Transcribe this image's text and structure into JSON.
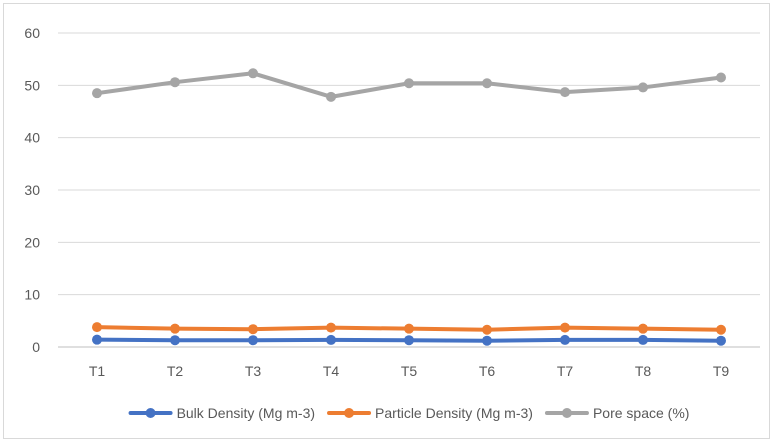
{
  "chart_data": {
    "type": "line",
    "title": "",
    "xlabel": "",
    "ylabel": "",
    "categories": [
      "T1",
      "T2",
      "T3",
      "T4",
      "T5",
      "T6",
      "T7",
      "T8",
      "T9"
    ],
    "ylim": [
      0,
      60
    ],
    "yticks": [
      0,
      10,
      20,
      30,
      40,
      50,
      60
    ],
    "grid": "horizontal",
    "legend": "bottom",
    "series": [
      {
        "name": "Bulk Density (Mg m-3)",
        "color": "#4472c4",
        "values": [
          1.4,
          1.3,
          1.3,
          1.35,
          1.3,
          1.2,
          1.35,
          1.35,
          1.2
        ]
      },
      {
        "name": "Particle Density (Mg m-3)",
        "color": "#ed7d31",
        "values": [
          3.8,
          3.5,
          3.4,
          3.7,
          3.5,
          3.3,
          3.7,
          3.5,
          3.3
        ]
      },
      {
        "name": "Pore space (%)",
        "color": "#a5a5a5",
        "values": [
          48.5,
          50.6,
          52.3,
          47.8,
          50.4,
          50.4,
          48.7,
          49.6,
          51.5
        ]
      }
    ]
  }
}
